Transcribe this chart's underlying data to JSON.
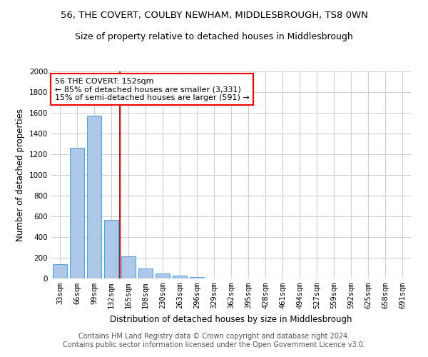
{
  "title1": "56, THE COVERT, COULBY NEWHAM, MIDDLESBROUGH, TS8 0WN",
  "title2": "Size of property relative to detached houses in Middlesbrough",
  "xlabel": "Distribution of detached houses by size in Middlesbrough",
  "ylabel": "Number of detached properties",
  "categories": [
    "33sqm",
    "66sqm",
    "99sqm",
    "132sqm",
    "165sqm",
    "198sqm",
    "230sqm",
    "263sqm",
    "296sqm",
    "329sqm",
    "362sqm",
    "395sqm",
    "428sqm",
    "461sqm",
    "494sqm",
    "527sqm",
    "559sqm",
    "592sqm",
    "625sqm",
    "658sqm",
    "691sqm"
  ],
  "values": [
    140,
    1265,
    1575,
    565,
    215,
    95,
    50,
    25,
    15,
    0,
    0,
    0,
    0,
    0,
    0,
    0,
    0,
    0,
    0,
    0,
    0
  ],
  "bar_color": "#aec6e8",
  "bar_edge_color": "#5a9fd4",
  "vline_pos": 3.5,
  "vline_color": "red",
  "annotation_text": "56 THE COVERT: 152sqm\n← 85% of detached houses are smaller (3,331)\n15% of semi-detached houses are larger (591) →",
  "annotation_box_color": "white",
  "annotation_box_edge_color": "red",
  "ylim": [
    0,
    2000
  ],
  "yticks": [
    0,
    200,
    400,
    600,
    800,
    1000,
    1200,
    1400,
    1600,
    1800,
    2000
  ],
  "grid_color": "#d0d0d0",
  "background_color": "white",
  "footer1": "Contains HM Land Registry data © Crown copyright and database right 2024.",
  "footer2": "Contains public sector information licensed under the Open Government Licence v3.0.",
  "title1_fontsize": 9.5,
  "title2_fontsize": 9,
  "axis_label_fontsize": 8.5,
  "tick_fontsize": 7.5,
  "annotation_fontsize": 8,
  "footer_fontsize": 7
}
